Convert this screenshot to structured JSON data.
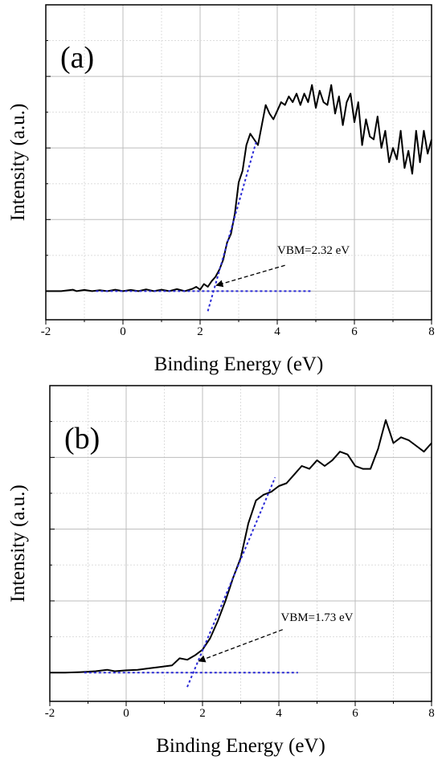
{
  "chart_data": [
    {
      "type": "line",
      "panel_label": "(a)",
      "xlabel": "Binding Energy (eV)",
      "ylabel": "Intensity (a.u.)",
      "xlim": [
        -2,
        8
      ],
      "ylim": [
        -0.1,
        1.0
      ],
      "xticks": [
        -2,
        0,
        2,
        4,
        6,
        8
      ],
      "xtick_labels": [
        "-2",
        "0",
        "2",
        "4",
        "6",
        "8"
      ],
      "grid": true,
      "series": [
        {
          "color": "#000000",
          "style": "solid",
          "x": [
            -2.0,
            -1.6,
            -1.3,
            -1.2,
            -1.0,
            -0.8,
            -0.6,
            -0.4,
            -0.2,
            0.0,
            0.2,
            0.4,
            0.6,
            0.8,
            1.0,
            1.2,
            1.4,
            1.6,
            1.8,
            1.9,
            2.0,
            2.1,
            2.2,
            2.3,
            2.4,
            2.5,
            2.6,
            2.7,
            2.8,
            2.9,
            3.0,
            3.1,
            3.2,
            3.3,
            3.4,
            3.5,
            3.6,
            3.7,
            3.8,
            3.9,
            4.0,
            4.1,
            4.2,
            4.3,
            4.4,
            4.5,
            4.6,
            4.7,
            4.8,
            4.9,
            5.0,
            5.1,
            5.2,
            5.3,
            5.4,
            5.5,
            5.6,
            5.7,
            5.8,
            5.9,
            6.0,
            6.1,
            6.2,
            6.3,
            6.4,
            6.5,
            6.6,
            6.7,
            6.8,
            6.9,
            7.0,
            7.1,
            7.2,
            7.3,
            7.4,
            7.5,
            7.6,
            7.7,
            7.8,
            7.9,
            8.0
          ],
          "y": [
            0.0,
            0.0,
            0.005,
            0.0,
            0.004,
            0.0,
            0.003,
            0.0,
            0.005,
            0.0,
            0.004,
            0.0,
            0.006,
            0.0,
            0.005,
            0.0,
            0.007,
            0.0,
            0.008,
            0.015,
            0.005,
            0.025,
            0.015,
            0.035,
            0.05,
            0.075,
            0.11,
            0.17,
            0.2,
            0.27,
            0.38,
            0.42,
            0.51,
            0.55,
            0.53,
            0.51,
            0.58,
            0.65,
            0.62,
            0.6,
            0.63,
            0.66,
            0.65,
            0.68,
            0.66,
            0.69,
            0.65,
            0.69,
            0.66,
            0.72,
            0.64,
            0.7,
            0.66,
            0.65,
            0.72,
            0.62,
            0.68,
            0.58,
            0.66,
            0.69,
            0.59,
            0.66,
            0.51,
            0.6,
            0.54,
            0.53,
            0.61,
            0.5,
            0.56,
            0.45,
            0.5,
            0.46,
            0.56,
            0.43,
            0.49,
            0.41,
            0.56,
            0.45,
            0.56,
            0.48,
            0.53
          ]
        },
        {
          "color": "#2a2ad6",
          "style": "dotted",
          "x": [
            -0.7,
            4.9
          ],
          "y": [
            0.0,
            0.0
          ]
        },
        {
          "color": "#2a2ad6",
          "style": "dotted",
          "x": [
            2.2,
            3.45
          ],
          "y": [
            -0.07,
            0.52
          ]
        }
      ],
      "annotations": [
        {
          "text": "VBM=2.32 eV",
          "x": 4.0,
          "y": 0.13,
          "arrow_from": [
            4.2,
            0.09
          ],
          "arrow_to": [
            2.42,
            0.02
          ]
        }
      ]
    },
    {
      "type": "line",
      "panel_label": "(b)",
      "xlabel": "Binding Energy (eV)",
      "ylabel": "Intensity (a.u.)",
      "xlim": [
        -2,
        8
      ],
      "ylim": [
        -0.1,
        1.0
      ],
      "xticks": [
        -2,
        0,
        2,
        4,
        6,
        8
      ],
      "xtick_labels": [
        "-2",
        "0",
        "2",
        "4",
        "6",
        "8"
      ],
      "grid": true,
      "series": [
        {
          "color": "#000000",
          "style": "solid",
          "x": [
            -2.0,
            -1.6,
            -1.2,
            -0.8,
            -0.5,
            -0.3,
            0.0,
            0.3,
            0.6,
            0.9,
            1.2,
            1.4,
            1.6,
            1.8,
            2.0,
            2.2,
            2.4,
            2.6,
            2.8,
            3.0,
            3.1,
            3.2,
            3.3,
            3.4,
            3.5,
            3.6,
            3.8,
            4.0,
            4.2,
            4.4,
            4.6,
            4.8,
            5.0,
            5.2,
            5.4,
            5.6,
            5.8,
            6.0,
            6.2,
            6.4,
            6.6,
            6.7,
            6.8,
            6.9,
            7.0,
            7.2,
            7.4,
            7.6,
            7.8,
            8.0
          ],
          "y": [
            0.0,
            0.0,
            0.002,
            0.005,
            0.01,
            0.005,
            0.008,
            0.01,
            0.015,
            0.02,
            0.025,
            0.05,
            0.045,
            0.06,
            0.08,
            0.12,
            0.18,
            0.25,
            0.33,
            0.4,
            0.46,
            0.52,
            0.56,
            0.6,
            0.61,
            0.62,
            0.63,
            0.65,
            0.66,
            0.69,
            0.72,
            0.71,
            0.74,
            0.72,
            0.74,
            0.77,
            0.76,
            0.72,
            0.71,
            0.71,
            0.78,
            0.83,
            0.88,
            0.84,
            0.8,
            0.82,
            0.81,
            0.79,
            0.77,
            0.8
          ]
        },
        {
          "color": "#2a2ad6",
          "style": "dotted",
          "x": [
            -1.1,
            4.5
          ],
          "y": [
            0.0,
            0.0
          ]
        },
        {
          "color": "#2a2ad6",
          "style": "dotted",
          "x": [
            1.6,
            3.9
          ],
          "y": [
            -0.05,
            0.68
          ]
        }
      ],
      "annotations": [
        {
          "text": "VBM=1.73 eV",
          "x": 4.05,
          "y": 0.18,
          "arrow_from": [
            4.1,
            0.15
          ],
          "arrow_to": [
            1.9,
            0.04
          ]
        }
      ]
    }
  ]
}
